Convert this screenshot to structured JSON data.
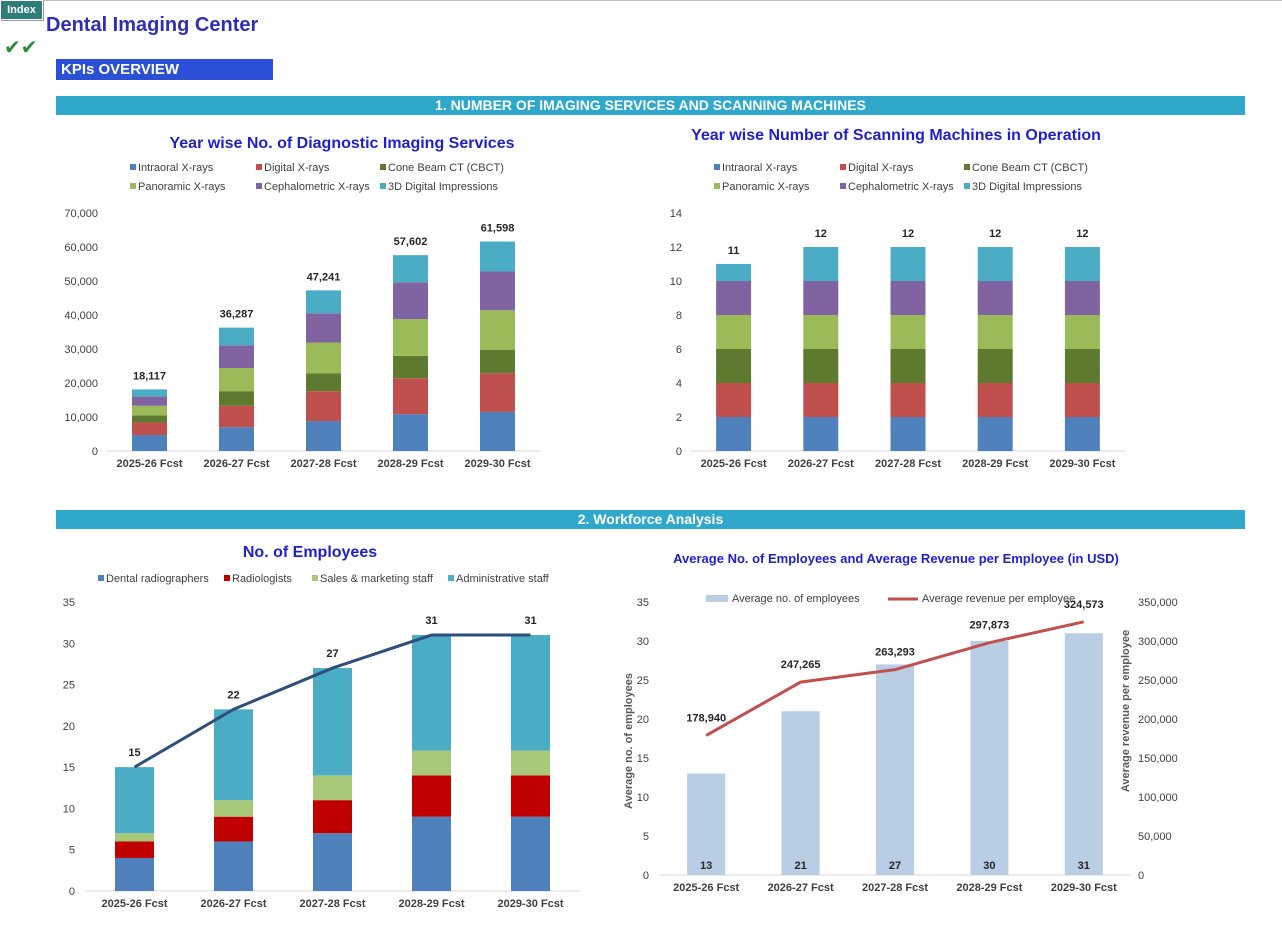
{
  "header": {
    "index_button": "Index",
    "title": "Dental Imaging Center",
    "checks": "✔✔",
    "kpi_label": "KPIs OVERVIEW"
  },
  "sections": {
    "s1": "1. NUMBER OF IMAGING SERVICES AND SCANNING MACHINES",
    "s2": "2. Workforce Analysis"
  },
  "colors": {
    "intraoral": "#4f81bd",
    "digital": "#c0504d",
    "cbct": "#5e7a2e",
    "panoramic": "#9bbb59",
    "cephalometric": "#8064a2",
    "impressions": "#4bacc6",
    "radiographers": "#4f81bd",
    "radiologists": "#c00000",
    "sales": "#a9c97a",
    "admin": "#4bacc6",
    "avg_bar": "#b9cde5",
    "revenue_line": "#c0504d",
    "total_line": "#2e4f7a",
    "title_blue": "#1f1fd0",
    "band": "#2fa8cc"
  },
  "chart_data": [
    {
      "id": "services",
      "type": "bar",
      "stacked": true,
      "title": "Year wise No. of Diagnostic Imaging Services",
      "categories": [
        "2025-26 Fcst",
        "2026-27 Fcst",
        "2027-28 Fcst",
        "2028-29 Fcst",
        "2029-30 Fcst"
      ],
      "series": [
        {
          "name": "Intraoral X-rays",
          "color_key": "intraoral",
          "values": [
            4700,
            7000,
            8800,
            10800,
            11500
          ]
        },
        {
          "name": "Digital X-rays",
          "color_key": "digital",
          "values": [
            3700,
            6300,
            8800,
            10600,
            11400
          ]
        },
        {
          "name": "Cone Beam CT (CBCT)",
          "color_key": "cbct",
          "values": [
            2100,
            4300,
            5200,
            6600,
            6800
          ]
        },
        {
          "name": "Panoramic X-rays",
          "color_key": "panoramic",
          "values": [
            2800,
            6800,
            9100,
            10800,
            11700
          ]
        },
        {
          "name": "Cephalometric X-rays",
          "color_key": "cephalometric",
          "values": [
            2700,
            6700,
            8600,
            10800,
            11400
          ]
        },
        {
          "name": "3D Digital Impressions",
          "color_key": "impressions",
          "values": [
            2117,
            5187,
            6741,
            8002,
            8798
          ]
        }
      ],
      "totals": [
        18117,
        36287,
        47241,
        57602,
        61598
      ],
      "total_labels": [
        "18,117",
        "36,287",
        "47,241",
        "57,602",
        "61,598"
      ],
      "ylim": [
        0,
        70000
      ],
      "yticks": [
        "0",
        "10,000",
        "20,000",
        "30,000",
        "40,000",
        "50,000",
        "60,000",
        "70,000"
      ],
      "legend_position": "top"
    },
    {
      "id": "machines",
      "type": "bar",
      "stacked": true,
      "title": "Year wise Number of Scanning Machines in Operation",
      "categories": [
        "2025-26 Fcst",
        "2026-27 Fcst",
        "2027-28 Fcst",
        "2028-29 Fcst",
        "2029-30 Fcst"
      ],
      "series": [
        {
          "name": "Intraoral X-rays",
          "color_key": "intraoral",
          "values": [
            2,
            2,
            2,
            2,
            2
          ]
        },
        {
          "name": "Digital X-rays",
          "color_key": "digital",
          "values": [
            2,
            2,
            2,
            2,
            2
          ]
        },
        {
          "name": "Cone Beam CT (CBCT)",
          "color_key": "cbct",
          "values": [
            2,
            2,
            2,
            2,
            2
          ]
        },
        {
          "name": "Panoramic X-rays",
          "color_key": "panoramic",
          "values": [
            2,
            2,
            2,
            2,
            2
          ]
        },
        {
          "name": "Cephalometric X-rays",
          "color_key": "cephalometric",
          "values": [
            2,
            2,
            2,
            2,
            2
          ]
        },
        {
          "name": "3D Digital Impressions",
          "color_key": "impressions",
          "values": [
            1,
            2,
            2,
            2,
            2
          ]
        }
      ],
      "totals": [
        11,
        12,
        12,
        12,
        12
      ],
      "total_labels": [
        "11",
        "12",
        "12",
        "12",
        "12"
      ],
      "ylim": [
        0,
        14
      ],
      "yticks": [
        "0",
        "2",
        "4",
        "6",
        "8",
        "10",
        "12",
        "14"
      ],
      "legend_position": "top"
    },
    {
      "id": "employees",
      "type": "bar",
      "stacked": true,
      "title": "No. of Employees",
      "categories": [
        "2025-26 Fcst",
        "2026-27 Fcst",
        "2027-28 Fcst",
        "2028-29 Fcst",
        "2029-30 Fcst"
      ],
      "series": [
        {
          "name": "Dental radiographers",
          "color_key": "radiographers",
          "values": [
            4,
            6,
            7,
            9,
            9
          ]
        },
        {
          "name": "Radiologists",
          "color_key": "radiologists",
          "values": [
            2,
            3,
            4,
            5,
            5
          ]
        },
        {
          "name": "Sales & marketing staff",
          "color_key": "sales",
          "values": [
            1,
            2,
            3,
            3,
            3
          ]
        },
        {
          "name": "Administrative staff",
          "color_key": "admin",
          "values": [
            8,
            11,
            13,
            14,
            14
          ]
        }
      ],
      "totals": [
        15,
        22,
        27,
        31,
        31
      ],
      "total_labels": [
        "15",
        "22",
        "27",
        "31",
        "31"
      ],
      "total_line": true,
      "ylim": [
        0,
        35
      ],
      "yticks": [
        "0",
        "5",
        "10",
        "15",
        "20",
        "25",
        "30",
        "35"
      ],
      "legend_position": "top"
    },
    {
      "id": "avg",
      "type": "bar+line",
      "title": "Average No. of Employees and Average Revenue per Employee (in USD)",
      "categories": [
        "2025-26 Fcst",
        "2026-27 Fcst",
        "2027-28 Fcst",
        "2028-29 Fcst",
        "2029-30 Fcst"
      ],
      "bar_series": {
        "name": "Average no. of employees",
        "color_key": "avg_bar",
        "values": [
          13,
          21,
          27,
          30,
          31
        ],
        "labels": [
          "13",
          "21",
          "27",
          "30",
          "31"
        ]
      },
      "line_series": {
        "name": "Average revenue per employee",
        "color_key": "revenue_line",
        "values": [
          178940,
          247265,
          263293,
          297873,
          324573
        ],
        "labels": [
          "178,940",
          "247,265",
          "263,293",
          "297,873",
          "324,573"
        ]
      },
      "ylabel": "Average no. of  employees",
      "y2label": "Average revenue per employee",
      "ylim": [
        0,
        35
      ],
      "y2lim": [
        0,
        350000
      ],
      "yticks": [
        "0",
        "5",
        "10",
        "15",
        "20",
        "25",
        "30",
        "35"
      ],
      "y2ticks": [
        "0",
        "50,000",
        "100,000",
        "150,000",
        "200,000",
        "250,000",
        "300,000",
        "350,000"
      ],
      "legend_position": "top"
    }
  ]
}
